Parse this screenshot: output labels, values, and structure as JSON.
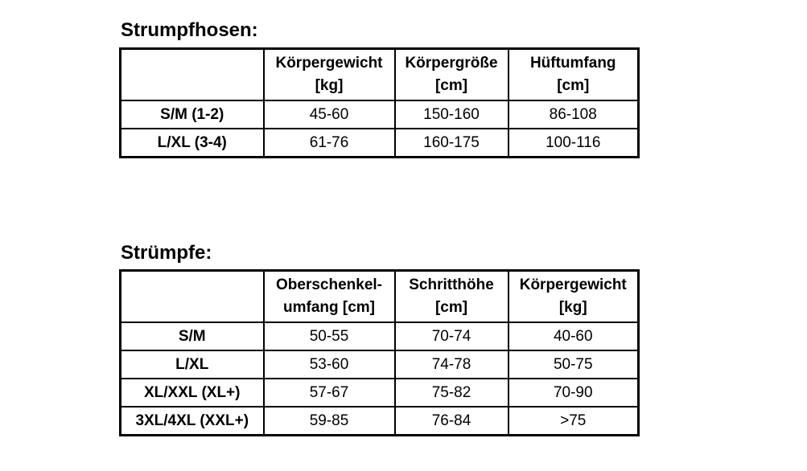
{
  "page": {
    "background_color": "#ffffff",
    "text_color": "#000000",
    "border_color": "#000000"
  },
  "tables": [
    {
      "title": "Strumpfhosen:",
      "columns": [
        "",
        "Körpergewicht\n[kg]",
        "Körpergröße\n[cm]",
        "Hüftumfang\n[cm]"
      ],
      "rows": [
        {
          "label": "S/M (1-2)",
          "values": [
            "45-60",
            "150-160",
            "86-108"
          ]
        },
        {
          "label": "L/XL (3-4)",
          "values": [
            "61-76",
            "160-175",
            "100-116"
          ]
        }
      ]
    },
    {
      "title": "Strümpfe:",
      "columns": [
        "",
        "Oberschenkel-\numfang [cm]",
        "Schritthöhe\n[cm]",
        "Körpergewicht\n[kg]"
      ],
      "rows": [
        {
          "label": "S/M",
          "values": [
            "50-55",
            "70-74",
            "40-60"
          ]
        },
        {
          "label": "L/XL",
          "values": [
            "53-60",
            "74-78",
            "50-75"
          ]
        },
        {
          "label": "XL/XXL (XL+)",
          "values": [
            "57-67",
            "75-82",
            "70-90"
          ]
        },
        {
          "label": "3XL/4XL (XXL+)",
          "values": [
            "59-85",
            "76-84",
            ">75"
          ]
        }
      ]
    }
  ]
}
